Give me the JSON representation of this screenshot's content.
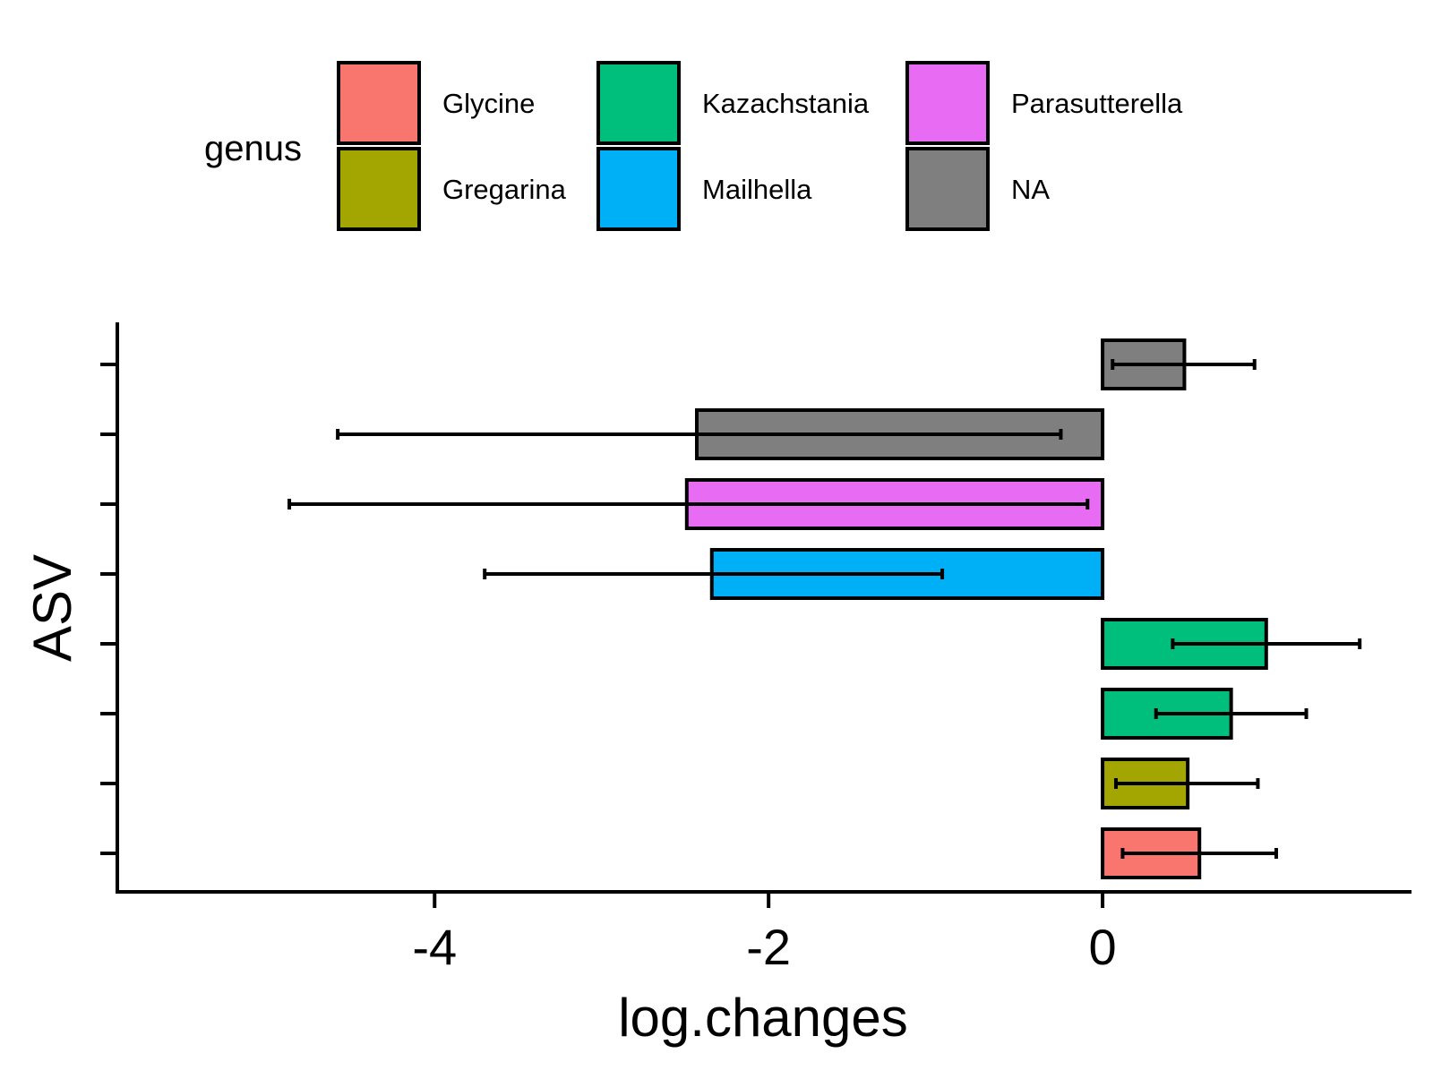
{
  "chart_data": {
    "type": "bar",
    "orientation": "horizontal",
    "xlabel": "log.changes",
    "ylabel": "ASV",
    "xlim": [
      -5.9,
      1.85
    ],
    "x_ticks": [
      -4,
      -2,
      0
    ],
    "x_tick_labels": [
      "-4",
      "-2",
      "0"
    ],
    "grid": false,
    "legend": {
      "title": "genus",
      "position": "top",
      "entries": [
        {
          "label": "Glycine",
          "color": "#F8766D"
        },
        {
          "label": "Gregarina",
          "color": "#A3A500"
        },
        {
          "label": "Kazachstania",
          "color": "#00BF7D"
        },
        {
          "label": "Mailhella",
          "color": "#00B0F6"
        },
        {
          "label": "Parasutterella",
          "color": "#E76BF3"
        },
        {
          "label": "NA",
          "color": "#7F7F7F"
        }
      ]
    },
    "bars": [
      {
        "genus": "Glycine",
        "value": 0.58,
        "error_low": 0.12,
        "error_high": 1.04
      },
      {
        "genus": "Gregarina",
        "value": 0.51,
        "error_low": 0.08,
        "error_high": 0.93
      },
      {
        "genus": "Kazachstania",
        "value": 0.77,
        "error_low": 0.32,
        "error_high": 1.22
      },
      {
        "genus": "Kazachstania",
        "value": 0.98,
        "error_low": 0.42,
        "error_high": 1.54
      },
      {
        "genus": "Mailhella",
        "value": -2.34,
        "error_low": -3.7,
        "error_high": -0.96
      },
      {
        "genus": "Parasutterella",
        "value": -2.49,
        "error_low": -4.87,
        "error_high": -0.09
      },
      {
        "genus": "NA",
        "value": -2.43,
        "error_low": -4.58,
        "error_high": -0.25
      },
      {
        "genus": "NA",
        "value": 0.49,
        "error_low": 0.06,
        "error_high": 0.91
      }
    ]
  }
}
